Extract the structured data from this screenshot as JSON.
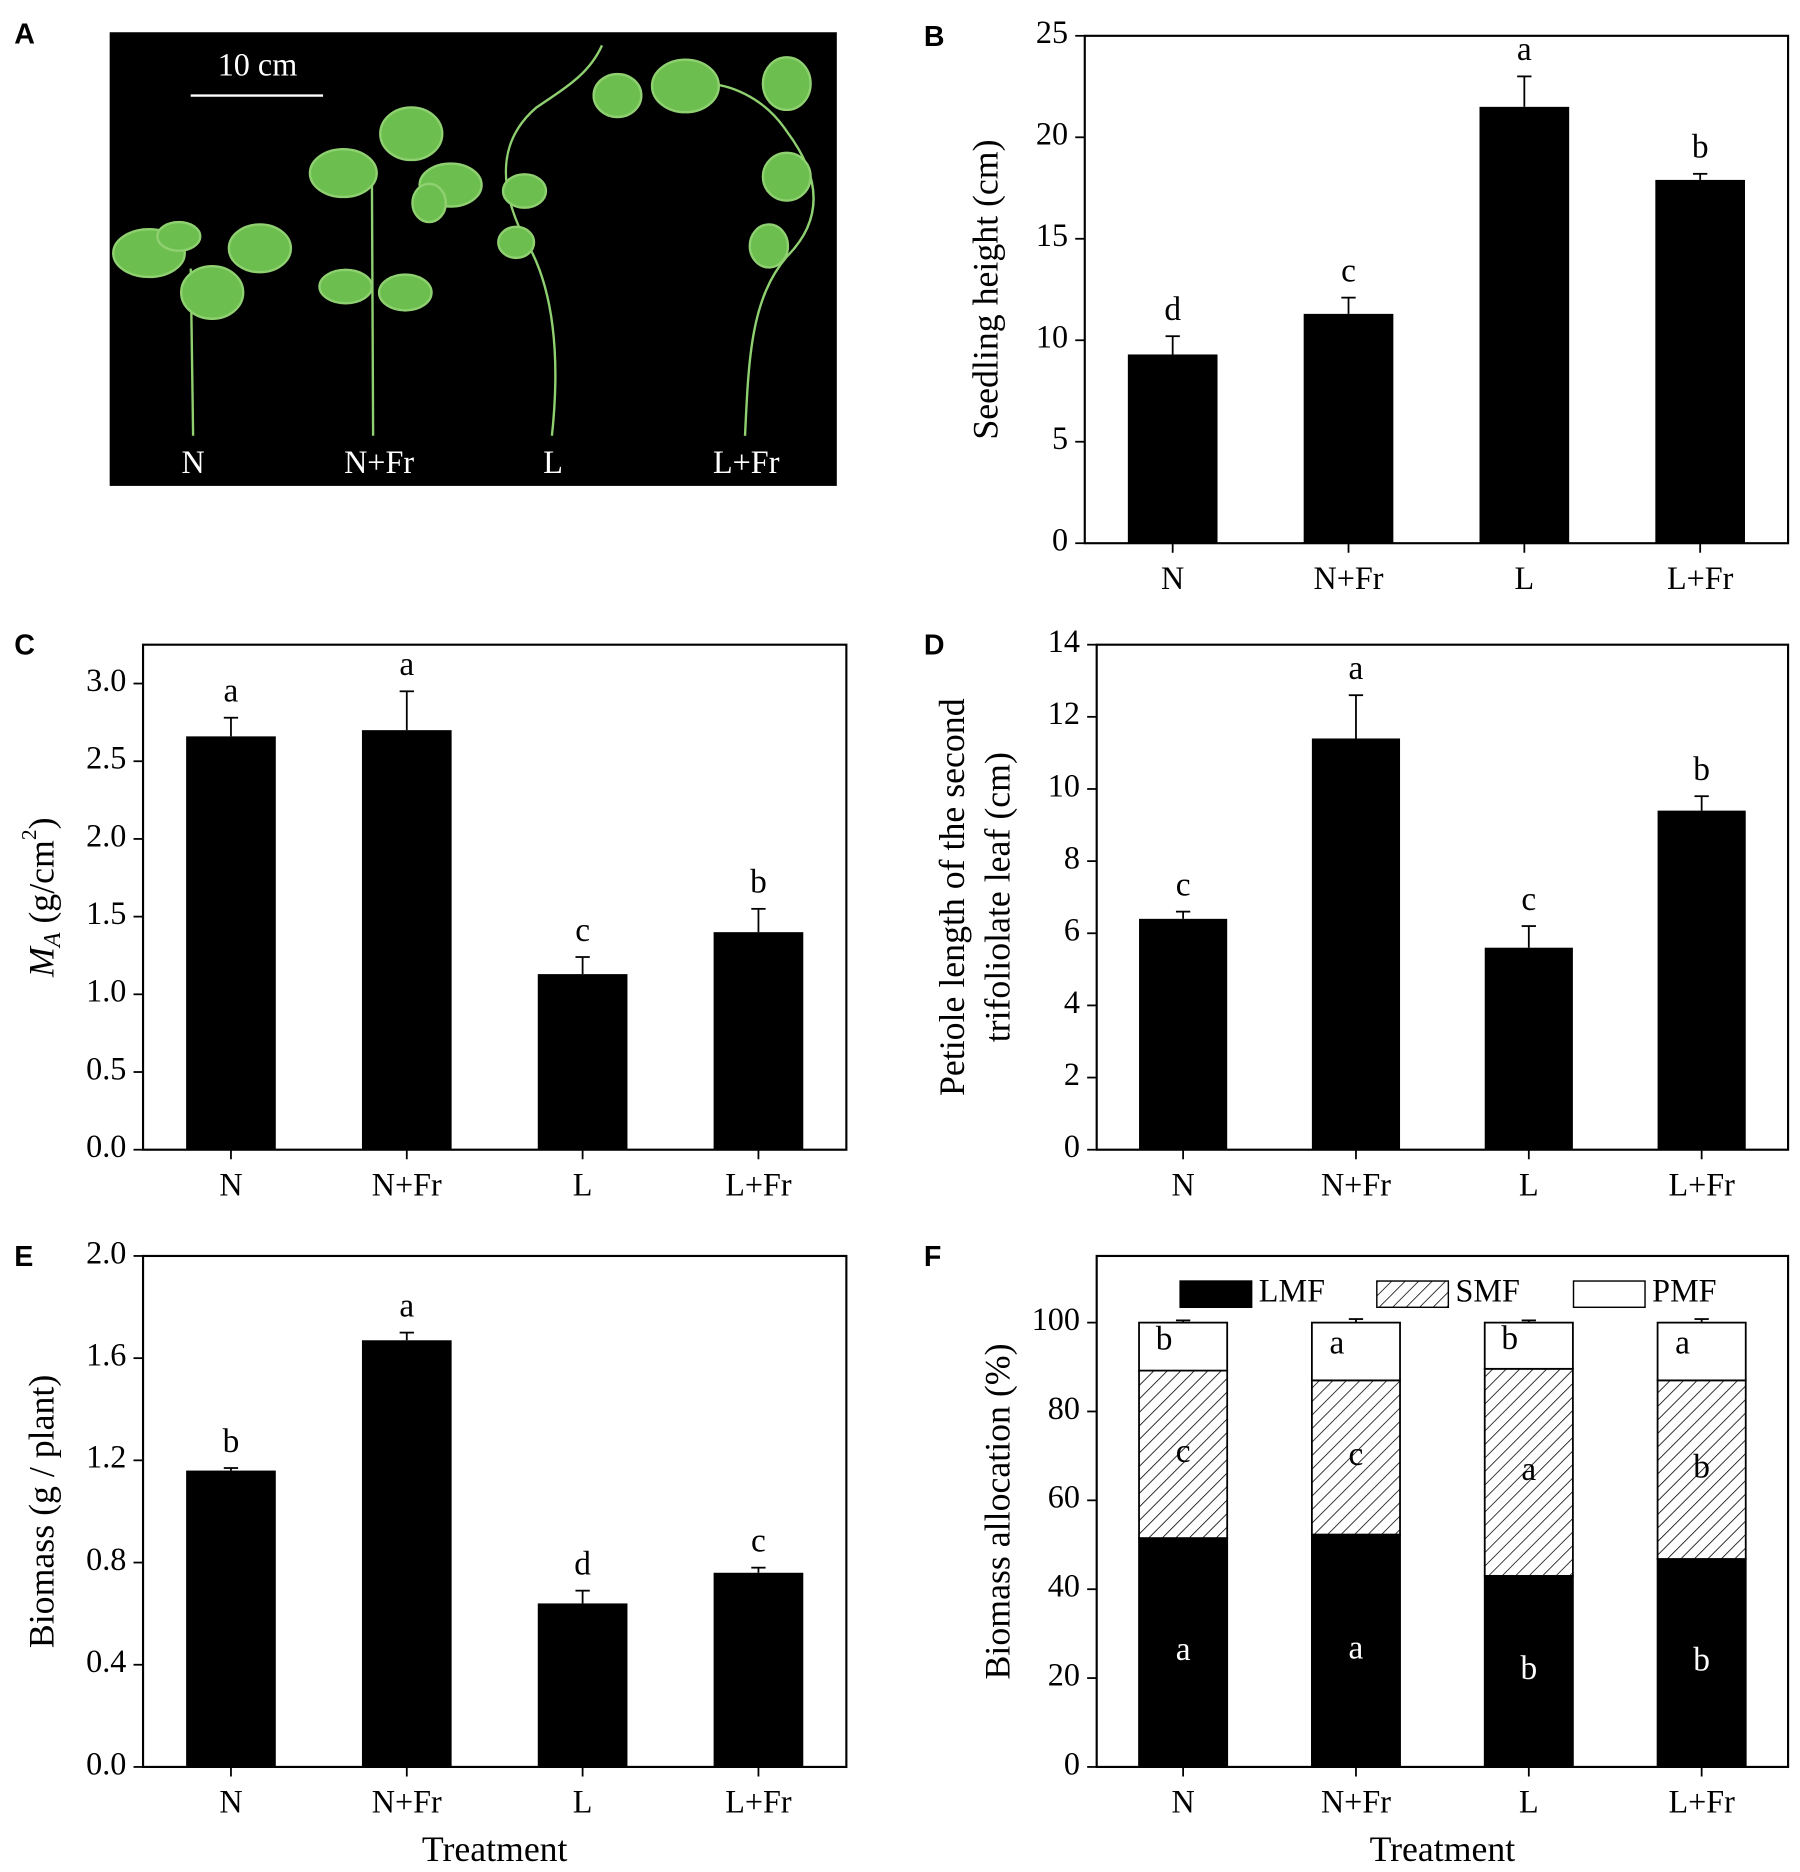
{
  "photo": {
    "panel": "A",
    "scale_label": "10 cm",
    "labels": [
      "N",
      "N+Fr",
      "L",
      "L+Fr"
    ]
  },
  "chart_data": [
    {
      "panel": "B",
      "type": "bar",
      "ylabel": "Seedling height (cm)",
      "categories": [
        "N",
        "N+Fr",
        "L",
        "L+Fr"
      ],
      "values": [
        9.3,
        11.3,
        21.5,
        17.9
      ],
      "errors": [
        0.9,
        0.8,
        1.5,
        0.3
      ],
      "significance": [
        "d",
        "c",
        "a",
        "b"
      ],
      "color": "#000000",
      "ylim": [
        0,
        25
      ],
      "yticks": [
        0,
        5,
        10,
        15,
        20,
        25
      ]
    },
    {
      "panel": "C",
      "type": "bar",
      "ylabel": {
        "main": "M",
        "sub": "A",
        "unit": " (g/cm",
        "sup": "2",
        "close": ")"
      },
      "categories": [
        "N",
        "N+Fr",
        "L",
        "L+Fr"
      ],
      "values": [
        2.66,
        2.7,
        1.13,
        1.4
      ],
      "errors": [
        0.12,
        0.25,
        0.11,
        0.15
      ],
      "significance": [
        "a",
        "a",
        "c",
        "b"
      ],
      "color": "#000000",
      "ylim": [
        0,
        3.25
      ],
      "yticks": [
        {
          "value": 0,
          "label": "0.0"
        },
        0.5,
        {
          "value": 1,
          "label": "1.0"
        },
        1.5,
        {
          "value": 2,
          "label": "2.0"
        },
        2.5,
        {
          "value": 3,
          "label": "3.0"
        }
      ]
    },
    {
      "panel": "D",
      "type": "bar",
      "ylabel": [
        "Petiole length of the second",
        "trifoliolate leaf (cm)"
      ],
      "categories": [
        "N",
        "N+Fr",
        "L",
        "L+Fr"
      ],
      "values": [
        6.4,
        11.4,
        5.6,
        9.4
      ],
      "errors": [
        0.2,
        1.2,
        0.6,
        0.4
      ],
      "significance": [
        "c",
        "a",
        "c",
        "b"
      ],
      "color": "#000000",
      "ylim": [
        0,
        14
      ],
      "yticks": [
        0,
        2,
        4,
        6,
        8,
        10,
        12,
        14
      ]
    },
    {
      "panel": "E",
      "type": "bar",
      "ylabel": "Biomass  (g / plant)",
      "xlabel": "Treatment",
      "categories": [
        "N",
        "N+Fr",
        "L",
        "L+Fr"
      ],
      "values": [
        1.16,
        1.67,
        0.64,
        0.76
      ],
      "errors": [
        0.01,
        0.03,
        0.05,
        0.02
      ],
      "significance": [
        "b",
        "a",
        "d",
        "c"
      ],
      "color": "#000000",
      "ylim": [
        0,
        2
      ],
      "yticks": [
        {
          "value": 0,
          "label": "0.0"
        },
        0.4,
        0.8,
        1.2,
        1.6,
        {
          "value": 2,
          "label": "2.0"
        }
      ]
    },
    {
      "panel": "F",
      "type": "stacked_bar",
      "ylabel": "Biomass allocation (%)",
      "xlabel": "Treatment",
      "categories": [
        "N",
        "N+Fr",
        "L",
        "L+Fr"
      ],
      "legend": "top",
      "series": [
        {
          "name": "LMF",
          "color": "#000000",
          "values": [
            51.5,
            52.3,
            43,
            46.8
          ],
          "errors": [
            3,
            1,
            2.5,
            3
          ],
          "significance": [
            "a",
            "a",
            "b",
            "b"
          ]
        },
        {
          "name": "SMF",
          "color": "#ffffff",
          "hatch": true,
          "values": [
            37.7,
            34.7,
            46.6,
            40.2
          ],
          "errors": [
            3,
            1,
            3.5,
            0.5
          ],
          "significance": [
            "c",
            "c",
            "a",
            "b"
          ]
        },
        {
          "name": "PMF",
          "color": "#ffffff",
          "values": [
            10.8,
            13,
            10.4,
            13
          ],
          "errors": [
            0.5,
            0.8,
            0.5,
            0.8
          ],
          "significance": [
            "b",
            "a",
            "b",
            "a"
          ]
        }
      ],
      "ylim": [
        0,
        115
      ],
      "yticks": [
        0,
        20,
        40,
        60,
        80,
        100
      ]
    }
  ]
}
